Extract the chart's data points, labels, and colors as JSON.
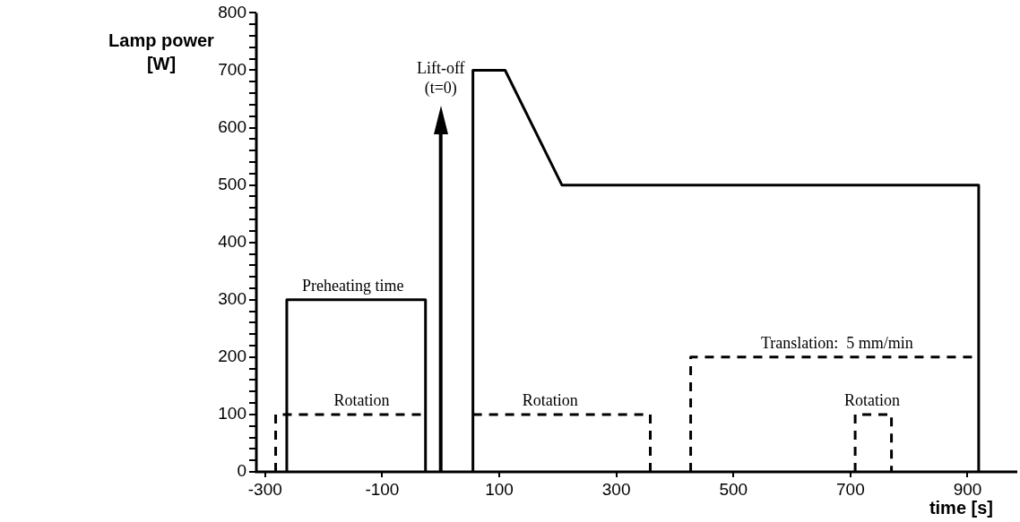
{
  "chart_data": {
    "type": "line",
    "xlabel": "time [s]",
    "ylabel": "Lamp power [W]",
    "xlim": [
      -315,
      985
    ],
    "ylim": [
      0,
      800
    ],
    "xticks": [
      -300,
      -100,
      100,
      300,
      500,
      700,
      900
    ],
    "yticks": [
      0,
      {
        "value": 20,
        "label": null
      },
      {
        "value": 40,
        "label": null
      },
      {
        "value": 60,
        "label": null
      },
      {
        "value": 80,
        "label": null
      },
      100,
      {
        "value": 120,
        "label": null
      },
      {
        "value": 140,
        "label": null
      },
      {
        "value": 160,
        "label": null
      },
      {
        "value": 180,
        "label": null
      },
      200,
      {
        "value": 220,
        "label": null
      },
      {
        "value": 240,
        "label": null
      },
      {
        "value": 260,
        "label": null
      },
      {
        "value": 280,
        "label": null
      },
      300,
      {
        "value": 320,
        "label": null
      },
      {
        "value": 340,
        "label": null
      },
      {
        "value": 360,
        "label": null
      },
      {
        "value": 380,
        "label": null
      },
      400,
      {
        "value": 420,
        "label": null
      },
      {
        "value": 440,
        "label": null
      },
      {
        "value": 460,
        "label": null
      },
      {
        "value": 480,
        "label": null
      },
      500,
      {
        "value": 520,
        "label": null
      },
      {
        "value": 540,
        "label": null
      },
      {
        "value": 560,
        "label": null
      },
      {
        "value": 580,
        "label": null
      },
      600,
      {
        "value": 620,
        "label": null
      },
      {
        "value": 640,
        "label": null
      },
      {
        "value": 660,
        "label": null
      },
      {
        "value": 680,
        "label": null
      },
      700,
      {
        "value": 720,
        "label": null
      },
      {
        "value": 740,
        "label": null
      },
      {
        "value": 760,
        "label": null
      },
      {
        "value": 780,
        "label": null
      },
      800
    ],
    "grid": false,
    "legend": false,
    "marker": "none",
    "series": [
      {
        "color": "#000000",
        "line_style": "solid",
        "x": [
          -263,
          -263,
          -26,
          -26,
          null,
          55,
          55,
          110,
          207,
          919,
          919
        ],
        "values": [
          0,
          300,
          300,
          0,
          null,
          0,
          700,
          700,
          500,
          500,
          0
        ]
      },
      {
        "color": "#000000",
        "line_style": "dashed",
        "x": [
          -282,
          -282,
          -26,
          null,
          55,
          358,
          358,
          null,
          427,
          427,
          919,
          null,
          708,
          708,
          770,
          770
        ],
        "values": [
          0,
          100,
          100,
          null,
          100,
          100,
          0,
          null,
          0,
          200,
          200,
          null,
          0,
          100,
          100,
          0
        ]
      }
    ],
    "ref_lines": [
      {
        "axis": "x",
        "value": 0,
        "label": "Lift-off (t=0)"
      }
    ],
    "annotations": [
      {
        "text": "Preheating time",
        "x": -150,
        "y": 300
      },
      {
        "text": "Rotation",
        "x": -135,
        "y": 100
      },
      {
        "text": "Rotation",
        "x": 187,
        "y": 100
      },
      {
        "text": "Translation:  5 mm/min",
        "x": 677,
        "y": 200
      },
      {
        "text": "Rotation",
        "x": 737,
        "y": 100
      }
    ]
  }
}
